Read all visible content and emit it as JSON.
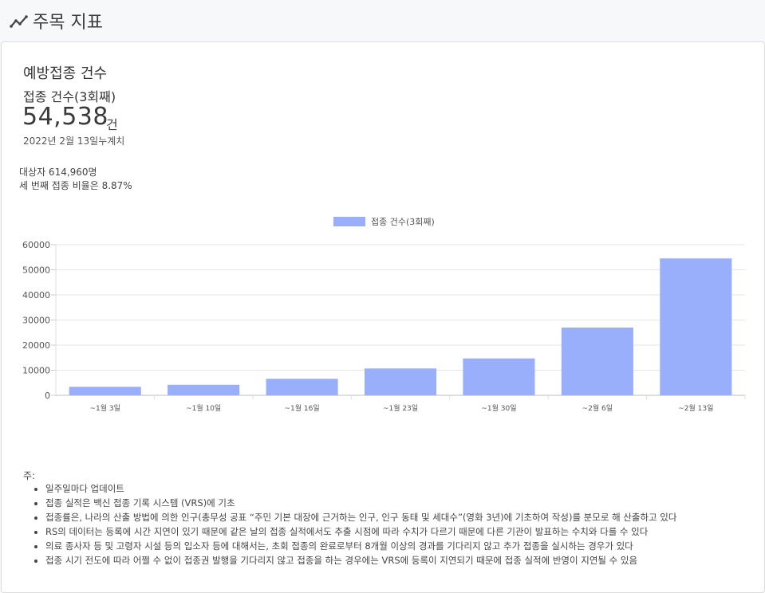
{
  "header": {
    "title": "주목 지표",
    "icon": "trend-line-icon"
  },
  "card": {
    "heading": "예방접종 건수",
    "subheading": "접종 건수(3회째)",
    "value": "54,538",
    "unit": "건",
    "date": "2022년 2월 13일누계치",
    "population": "대상자 614,960명",
    "ratio": "세 번째 접종 비율은 8.87%"
  },
  "chart_data": {
    "type": "bar",
    "categories": [
      "~1월 3일",
      "~1월 10일",
      "~1월 16일",
      "~1월 23일",
      "~1월 30일",
      "~2월 6일",
      "~2월 13일"
    ],
    "series": [
      {
        "name": "접종 건수(3회째)",
        "values": [
          3400,
          4200,
          6600,
          10700,
          14700,
          27000,
          54538
        ]
      }
    ],
    "ylim": [
      0,
      60000
    ],
    "yticks": [
      "60000",
      "50000",
      "40000",
      "30000",
      "20000",
      "10000",
      "0"
    ],
    "legend": "top-center",
    "grid": true,
    "color": "#9aaffb"
  },
  "notes": {
    "label": "주:",
    "items": [
      "일주일마다 업데이트",
      "접종 실적은 백신 접종 기록 시스템 (VRS)에 기초",
      "접종률은, 나라의 산출 방법에 의한 인구(총무성 공표 “주민 기본 대장에 근거하는 인구, 인구 동태 및 세대수”(영화 3년)에 기초하여 작성)를 분모로 해 산출하고 있다",
      "RS의 데이터는 등록에 시간 지연이 있기 때문에 같은 날의 접종 실적에서도 추출 시점에 따라 수치가 다르기 때문에 다른 기관이 발표하는 수치와 다를 수 있다",
      "의료 종사자 등 및 고령자 시설 등의 입소자 등에 대해서는, 초회 접종의 완료로부터 8개월 이상의 경과를 기다리지 않고 추가 접종을 실시하는 경우가 있다",
      "접종 시기 전도에 따라 어쩔 수 없이 접종권 발행을 기다리지 않고 접종을 하는 경우에는 VRS에 등록이 지연되기 때문에 접종 실적에 반영이 지연될 수 있음"
    ]
  }
}
